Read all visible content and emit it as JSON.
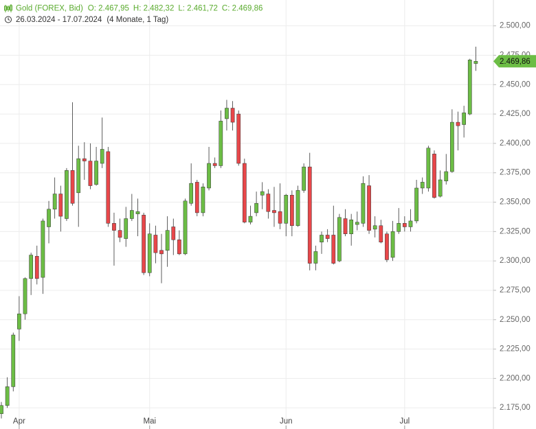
{
  "chart_data": {
    "type": "candlestick",
    "title": "Gold (FOREX, Bid)",
    "ohlc_labels": [
      "O: 2.467,95",
      "H: 2.482,32",
      "L: 2.461,72",
      "C: 2.469,86"
    ],
    "date_range": "26.03.2024 - 17.07.2024",
    "period": "(4 Monate, 1 Tag)",
    "up_color": "#6cbd45",
    "down_color": "#e8474a",
    "grid": true,
    "categories": [
      null,
      null,
      null,
      "Apr",
      null,
      null,
      null,
      null,
      null,
      null,
      null,
      null,
      null,
      null,
      null,
      null,
      null,
      null,
      null,
      null,
      null,
      null,
      null,
      null,
      null,
      "Mai",
      null,
      null,
      null,
      null,
      null,
      null,
      null,
      null,
      null,
      null,
      null,
      null,
      null,
      null,
      null,
      null,
      null,
      null,
      null,
      null,
      null,
      null,
      "Jun",
      null,
      null,
      null,
      null,
      null,
      null,
      null,
      null,
      null,
      null,
      null,
      null,
      null,
      null,
      null,
      null,
      null,
      null,
      null,
      "Jul",
      null,
      null,
      null,
      null,
      null,
      null,
      null,
      null,
      null,
      null,
      null,
      null
    ],
    "open": [
      2170,
      2177,
      2193,
      2242,
      2255,
      2285,
      2304,
      2286,
      2329,
      2344,
      2357,
      2336,
      2377,
      2358,
      2387,
      2385,
      2365,
      2383,
      2393,
      2332,
      2326,
      2319,
      2336,
      2340,
      2339,
      2290,
      2322,
      2309,
      2309,
      2329,
      2318,
      2306,
      2349,
      2367,
      2341,
      2362,
      2383,
      2381,
      2421,
      2430,
      2425,
      2383,
      2333,
      2341,
      2356,
      2357,
      2343,
      2342,
      2332,
      2356,
      2330,
      2360,
      2380,
      2298,
      2316,
      2322,
      2322,
      2300,
      2336,
      2323,
      2331,
      2332,
      2364,
      2327,
      2330,
      2323,
      2303,
      2325,
      2332,
      2329,
      2334,
      2362,
      2362,
      2391,
      2355,
      2368,
      2376,
      2418,
      2416,
      2425,
      2467.95
    ],
    "high": [
      2180,
      2201,
      2239,
      2270,
      2286,
      2307,
      2313,
      2336,
      2351,
      2371,
      2364,
      2379,
      2435,
      2398,
      2401,
      2400,
      2397,
      2422,
      2397,
      2341,
      2336,
      2346,
      2357,
      2353,
      2341,
      2332,
      2330,
      2323,
      2338,
      2336,
      2326,
      2353,
      2383,
      2369,
      2366,
      2397,
      2388,
      2428,
      2437,
      2436,
      2428,
      2387,
      2347,
      2359,
      2367,
      2361,
      2363,
      2366,
      2357,
      2360,
      2364,
      2383,
      2392,
      2313,
      2325,
      2327,
      2347,
      2340,
      2344,
      2340,
      2342,
      2372,
      2373,
      2338,
      2335,
      2325,
      2334,
      2345,
      2338,
      2344,
      2369,
      2371,
      2398,
      2394,
      2377,
      2391,
      2429,
      2427,
      2432,
      2472,
      2482.32
    ],
    "low": [
      2166,
      2175,
      2189,
      2232,
      2250,
      2271,
      2280,
      2272,
      2315,
      2336,
      2325,
      2334,
      2347,
      2329,
      2369,
      2361,
      2364,
      2379,
      2329,
      2296,
      2316,
      2312,
      2334,
      2321,
      2288,
      2287,
      2298,
      2281,
      2295,
      2305,
      2305,
      2305,
      2347,
      2338,
      2338,
      2360,
      2379,
      2379,
      2411,
      2411,
      2381,
      2332,
      2331,
      2338,
      2344,
      2336,
      2329,
      2327,
      2321,
      2321,
      2329,
      2358,
      2292,
      2292,
      2306,
      2316,
      2297,
      2299,
      2321,
      2313,
      2326,
      2329,
      2323,
      2320,
      2315,
      2299,
      2300,
      2323,
      2325,
      2325,
      2332,
      2357,
      2359,
      2353,
      2354,
      2365,
      2375,
      2394,
      2405,
      2424,
      2461.72
    ],
    "close": [
      2177,
      2193,
      2237,
      2255,
      2285,
      2305,
      2285,
      2334,
      2344,
      2357,
      2338,
      2377,
      2349,
      2387,
      2385,
      2364,
      2385,
      2395,
      2332,
      2326,
      2320,
      2336,
      2343,
      2342,
      2290,
      2323,
      2307,
      2306,
      2326,
      2318,
      2306,
      2351,
      2366,
      2341,
      2363,
      2383,
      2381,
      2419,
      2430,
      2418,
      2383,
      2333,
      2338,
      2349,
      2359,
      2342,
      2341,
      2332,
      2356,
      2330,
      2360,
      2380,
      2298,
      2308,
      2322,
      2319,
      2298,
      2337,
      2323,
      2335,
      2333,
      2366,
      2326,
      2330,
      2316,
      2301,
      2325,
      2332,
      2329,
      2334,
      2362,
      2367,
      2396,
      2354,
      2369,
      2376,
      2418,
      2415,
      2426,
      2471,
      2469.86
    ],
    "last_price": {
      "value": 2469.86,
      "label": "2.469,86"
    },
    "ylim": [
      2157,
      2522
    ],
    "yticks": [
      {
        "value": 2175,
        "label": "2.175,00"
      },
      {
        "value": 2200,
        "label": "2.200,00"
      },
      {
        "value": 2225,
        "label": "2.225,00"
      },
      {
        "value": 2250,
        "label": "2.250,00"
      },
      {
        "value": 2275,
        "label": "2.275,00"
      },
      {
        "value": 2300,
        "label": "2.300,00"
      },
      {
        "value": 2325,
        "label": "2.325,00"
      },
      {
        "value": 2350,
        "label": "2.350,00"
      },
      {
        "value": 2375,
        "label": "2.375,00"
      },
      {
        "value": 2400,
        "label": "2.400,00"
      },
      {
        "value": 2425,
        "label": "2.425,00"
      },
      {
        "value": 2450,
        "label": "2.450,00"
      },
      {
        "value": 2475,
        "label": "2.475,00"
      },
      {
        "value": 2500,
        "label": "2.500,00"
      }
    ]
  }
}
